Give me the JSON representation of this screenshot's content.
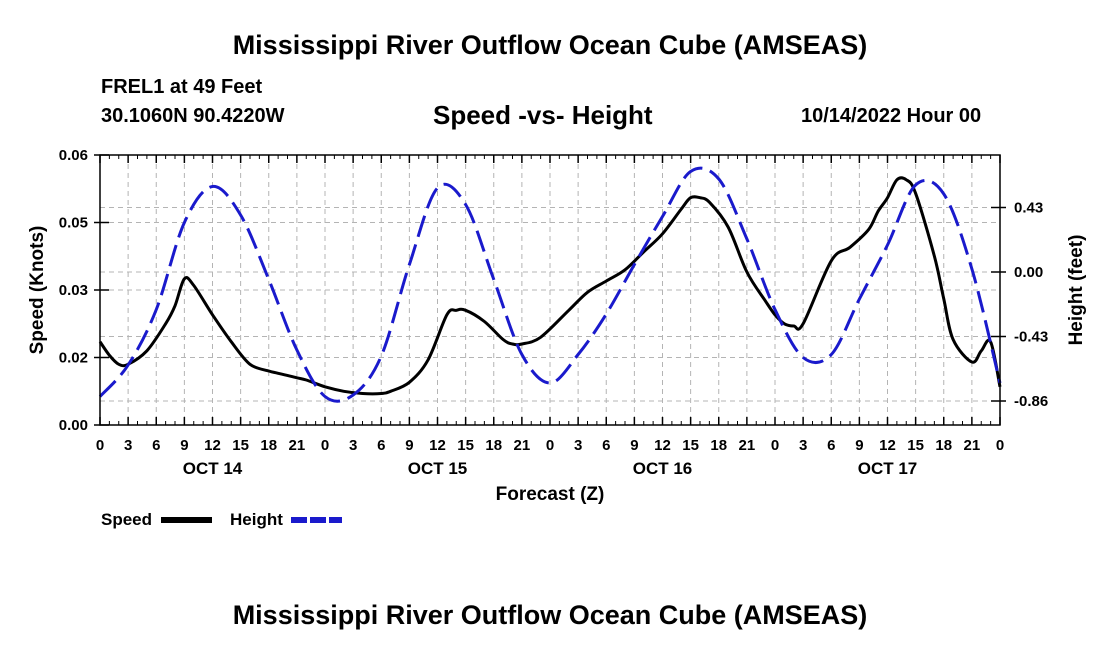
{
  "header": {
    "title": "Mississippi River Outflow Ocean Cube (AMSEAS)",
    "station": "FREL1 at 49 Feet",
    "coords": "30.1060N  90.4220W",
    "subtitle": "Speed -vs- Height",
    "datetime": "10/14/2022 Hour 00"
  },
  "footer": {
    "title": "Mississippi River Outflow Ocean Cube (AMSEAS)"
  },
  "legend": {
    "speed_label": "Speed",
    "height_label": "Height"
  },
  "colors": {
    "speed": "#000000",
    "height": "#1a1acc",
    "grid": "#b4b4b4"
  },
  "chart_data": {
    "type": "line",
    "title": "Speed -vs- Height",
    "xlabel": "Forecast (Z)",
    "ylabel": "Speed (Knots)",
    "y2label": "Height (feet)",
    "xlim": [
      0,
      96
    ],
    "ylim": [
      0,
      0.06
    ],
    "y2lim": [
      -1.02,
      0.78
    ],
    "y_ticks": [
      0,
      0.015,
      0.03,
      0.045,
      0.06
    ],
    "y_tick_labels": [
      "0.00",
      "0.02",
      "0.03",
      "0.05",
      "0.06"
    ],
    "y2_ticks": [
      -0.86,
      -0.43,
      0.0,
      0.43
    ],
    "y2_tick_labels": [
      "-0.86",
      "-0.43",
      "0.00",
      "0.43"
    ],
    "x_ticks": [
      0,
      3,
      6,
      9,
      12,
      15,
      18,
      21,
      24,
      27,
      30,
      33,
      36,
      39,
      42,
      45,
      48,
      51,
      54,
      57,
      60,
      63,
      66,
      69,
      72,
      75,
      78,
      81,
      84,
      87,
      90,
      93,
      96
    ],
    "x_tick_labels": [
      "0",
      "3",
      "6",
      "9",
      "12",
      "15",
      "18",
      "21",
      "0",
      "3",
      "6",
      "9",
      "12",
      "15",
      "18",
      "21",
      "0",
      "3",
      "6",
      "9",
      "12",
      "15",
      "18",
      "21",
      "0",
      "3",
      "6",
      "9",
      "12",
      "15",
      "18",
      "21",
      "0"
    ],
    "day_labels": [
      {
        "label": "OCT 14",
        "hour": 12
      },
      {
        "label": "OCT 15",
        "hour": 36
      },
      {
        "label": "OCT 16",
        "hour": 60
      },
      {
        "label": "OCT 17",
        "hour": 84
      }
    ],
    "series": [
      {
        "name": "Speed",
        "axis": "left",
        "style": "solid",
        "x": [
          0,
          1,
          2,
          3,
          5,
          7,
          8,
          9,
          10,
          12,
          14,
          16,
          18,
          19,
          21,
          22,
          24,
          26,
          28,
          30,
          31,
          33,
          35,
          37,
          38,
          39,
          41,
          43,
          44,
          45,
          47,
          50,
          52,
          54,
          56,
          58,
          60,
          62,
          63,
          64,
          65,
          67,
          69,
          71,
          72,
          73,
          74,
          75,
          78,
          80,
          82,
          83,
          84,
          85,
          86,
          87,
          89,
          90,
          91,
          93,
          94,
          95,
          96
        ],
        "values": [
          0.0185,
          0.0155,
          0.0135,
          0.0135,
          0.0165,
          0.0225,
          0.0265,
          0.0325,
          0.031,
          0.0245,
          0.0185,
          0.0135,
          0.012,
          0.0115,
          0.0105,
          0.01,
          0.0085,
          0.0075,
          0.007,
          0.007,
          0.0075,
          0.0095,
          0.0145,
          0.0245,
          0.0255,
          0.0255,
          0.023,
          0.019,
          0.018,
          0.018,
          0.0195,
          0.0255,
          0.0295,
          0.032,
          0.0345,
          0.0385,
          0.0425,
          0.048,
          0.0505,
          0.0505,
          0.0495,
          0.044,
          0.034,
          0.0275,
          0.0245,
          0.0225,
          0.022,
          0.0225,
          0.0365,
          0.0395,
          0.0435,
          0.0475,
          0.0505,
          0.0545,
          0.0545,
          0.0515,
          0.0375,
          0.028,
          0.019,
          0.014,
          0.0165,
          0.0185,
          0.0085
        ]
      },
      {
        "name": "Height",
        "axis": "right",
        "style": "dashed",
        "x": [
          0,
          3,
          6,
          9,
          12,
          15,
          18,
          21,
          24,
          27,
          30,
          33,
          36,
          39,
          42,
          45,
          48,
          51,
          54,
          57,
          60,
          63,
          66,
          69,
          72,
          75,
          78,
          81,
          84,
          87,
          90,
          93,
          96
        ],
        "values": [
          -0.83,
          -0.62,
          -0.25,
          0.33,
          0.57,
          0.38,
          -0.05,
          -0.52,
          -0.83,
          -0.82,
          -0.56,
          0.05,
          0.56,
          0.45,
          -0.05,
          -0.55,
          -0.74,
          -0.55,
          -0.28,
          0.05,
          0.37,
          0.67,
          0.62,
          0.22,
          -0.25,
          -0.57,
          -0.55,
          -0.18,
          0.18,
          0.58,
          0.52,
          0.02,
          -0.74
        ]
      }
    ]
  }
}
